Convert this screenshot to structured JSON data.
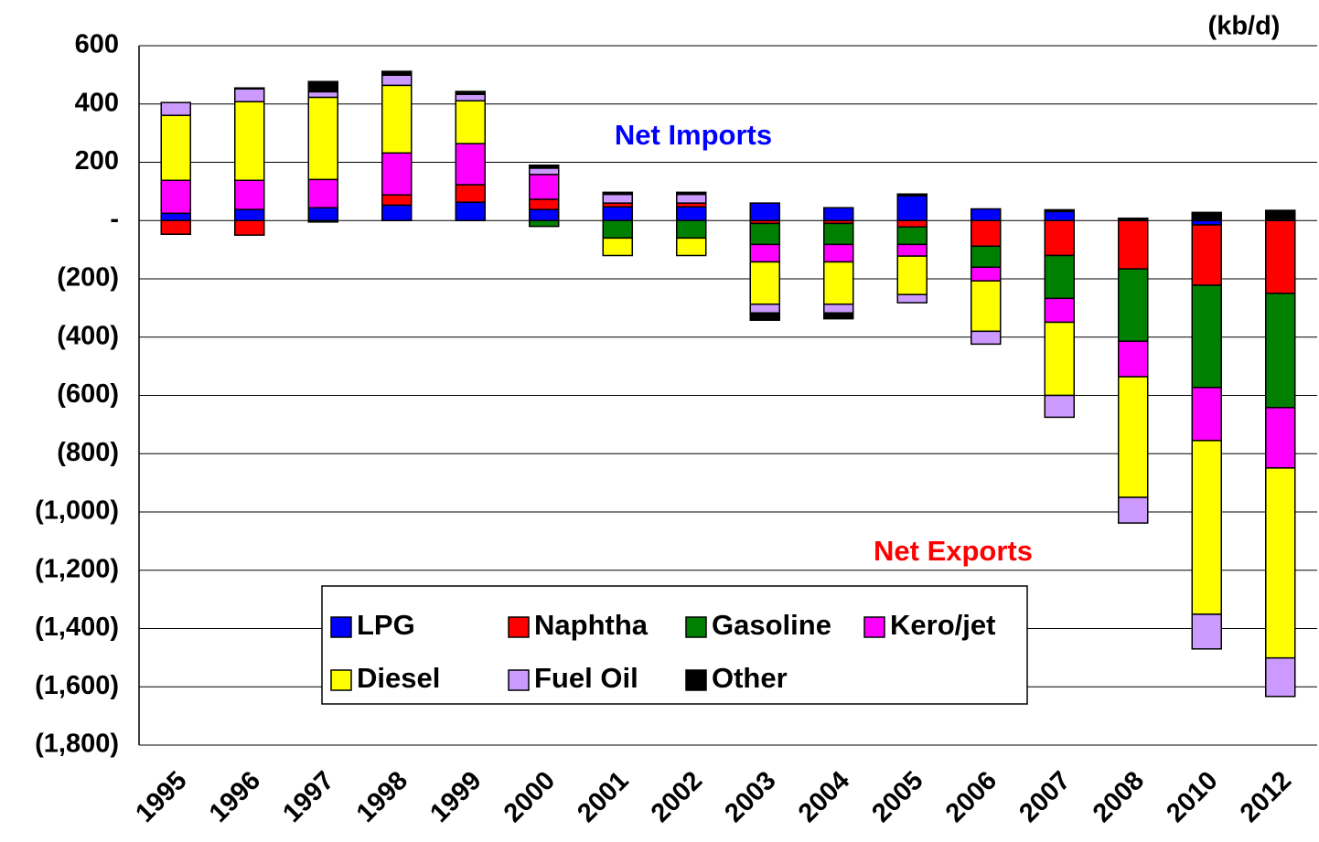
{
  "chart_data": {
    "type": "stacked_bar",
    "unit_label": "(kb/d)",
    "annotations": [
      {
        "text": "Net Imports",
        "color": "#0000ff"
      },
      {
        "text": "Net Exports",
        "color": "#ff0000"
      }
    ],
    "categories": [
      "1995",
      "1996",
      "1997",
      "1998",
      "1999",
      "2000",
      "2001",
      "2002",
      "2003",
      "2004",
      "2005",
      "2006",
      "2007",
      "2008",
      "2010",
      "2012"
    ],
    "series": [
      {
        "name": "LPG",
        "color": "#0000ff",
        "values": [
          25,
          38,
          44,
          53,
          63,
          38,
          47,
          47,
          60,
          44,
          85,
          40,
          31,
          0,
          -15,
          0
        ]
      },
      {
        "name": "Naphtha",
        "color": "#ff0000",
        "values": [
          -47,
          -50,
          0,
          35,
          60,
          35,
          13,
          13,
          -10,
          -10,
          -22,
          -88,
          -120,
          -166,
          -207,
          -250
        ]
      },
      {
        "name": "Gasoline",
        "color": "#008000",
        "values": [
          0,
          0,
          -5,
          0,
          0,
          -20,
          -60,
          -60,
          -72,
          -72,
          -60,
          -72,
          -147,
          -248,
          -351,
          -392
        ]
      },
      {
        "name": "Kero/jet",
        "color": "#ff00ff",
        "values": [
          113,
          100,
          97,
          144,
          141,
          85,
          0,
          0,
          -60,
          -60,
          -40,
          -47,
          -82,
          -122,
          -182,
          -207
        ]
      },
      {
        "name": "Diesel",
        "color": "#ffff00",
        "values": [
          223,
          270,
          282,
          232,
          147,
          0,
          -60,
          -60,
          -145,
          -145,
          -132,
          -173,
          -251,
          -414,
          -596,
          -652
        ]
      },
      {
        "name": "Fuel Oil",
        "color": "#cc99ff",
        "values": [
          44,
          44,
          19,
          35,
          22,
          22,
          30,
          30,
          -30,
          -30,
          -28,
          -44,
          -75,
          -88,
          -119,
          -132
        ]
      },
      {
        "name": "Other",
        "color": "#000000",
        "values": [
          0,
          3,
          35,
          13,
          10,
          10,
          7,
          7,
          -25,
          -20,
          6,
          0,
          6,
          8,
          28,
          35
        ]
      }
    ],
    "ylim": [
      -1800,
      600
    ],
    "yticks": [
      600,
      400,
      200,
      {
        "value": 0,
        "label": "-"
      },
      {
        "value": -200,
        "label": "(200)"
      },
      {
        "value": -400,
        "label": "(400)"
      },
      {
        "value": -600,
        "label": "(600)"
      },
      {
        "value": -800,
        "label": "(800)"
      },
      {
        "value": -1000,
        "label": "(1,000)"
      },
      {
        "value": -1200,
        "label": "(1,200)"
      },
      {
        "value": -1400,
        "label": "(1,400)"
      },
      {
        "value": -1600,
        "label": "(1,600)"
      },
      {
        "value": -1800,
        "label": "(1,800)"
      }
    ],
    "grid": true
  }
}
